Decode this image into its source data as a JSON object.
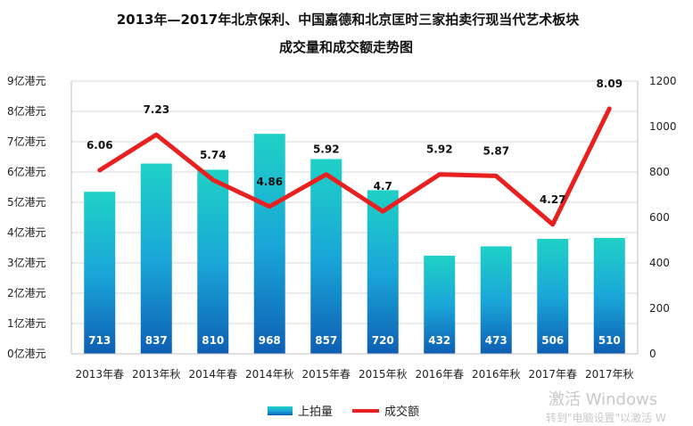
{
  "chart_data": {
    "type": "bar+line",
    "title_line1": "2013年—2017年北京保利、中国嘉德和北京匡时三家拍卖行现当代艺术板块",
    "title_line2": "成交量和成交额走势图",
    "categories": [
      "2013年春",
      "2013年秋",
      "2014年春",
      "2014年秋",
      "2015年春",
      "2015年秋",
      "2016年春",
      "2016年秋",
      "2017年春",
      "2017年秋"
    ],
    "series": [
      {
        "name": "上拍量",
        "type": "bar",
        "axis": "right",
        "values": [
          713,
          837,
          810,
          968,
          857,
          720,
          432,
          473,
          506,
          510
        ]
      },
      {
        "name": "成交额",
        "type": "line",
        "axis": "left",
        "values": [
          6.06,
          7.23,
          5.74,
          4.86,
          5.92,
          4.7,
          5.92,
          5.87,
          4.27,
          8.09
        ]
      }
    ],
    "y_left": {
      "ticks": [
        "0亿港元",
        "1亿港元",
        "2亿港元",
        "3亿港元",
        "4亿港元",
        "5亿港元",
        "6亿港元",
        "7亿港元",
        "8亿港元",
        "9亿港元"
      ],
      "ylim": [
        0,
        9
      ]
    },
    "y_right": {
      "ticks": [
        "0",
        "200",
        "400",
        "600",
        "800",
        "1000",
        "1200"
      ],
      "ylim": [
        0,
        1200
      ]
    },
    "grid": true,
    "legend_position": "bottom",
    "colors": {
      "bar_top": "#1fd1c6",
      "bar_mid": "#1aa7d8",
      "bar_bottom": "#0e5fb4",
      "line": "#e82020",
      "grid": "#d9d9d9"
    }
  },
  "watermark": {
    "line1": "激活 Windows",
    "line2": "转到\"电脑设置\"以激活 W"
  }
}
